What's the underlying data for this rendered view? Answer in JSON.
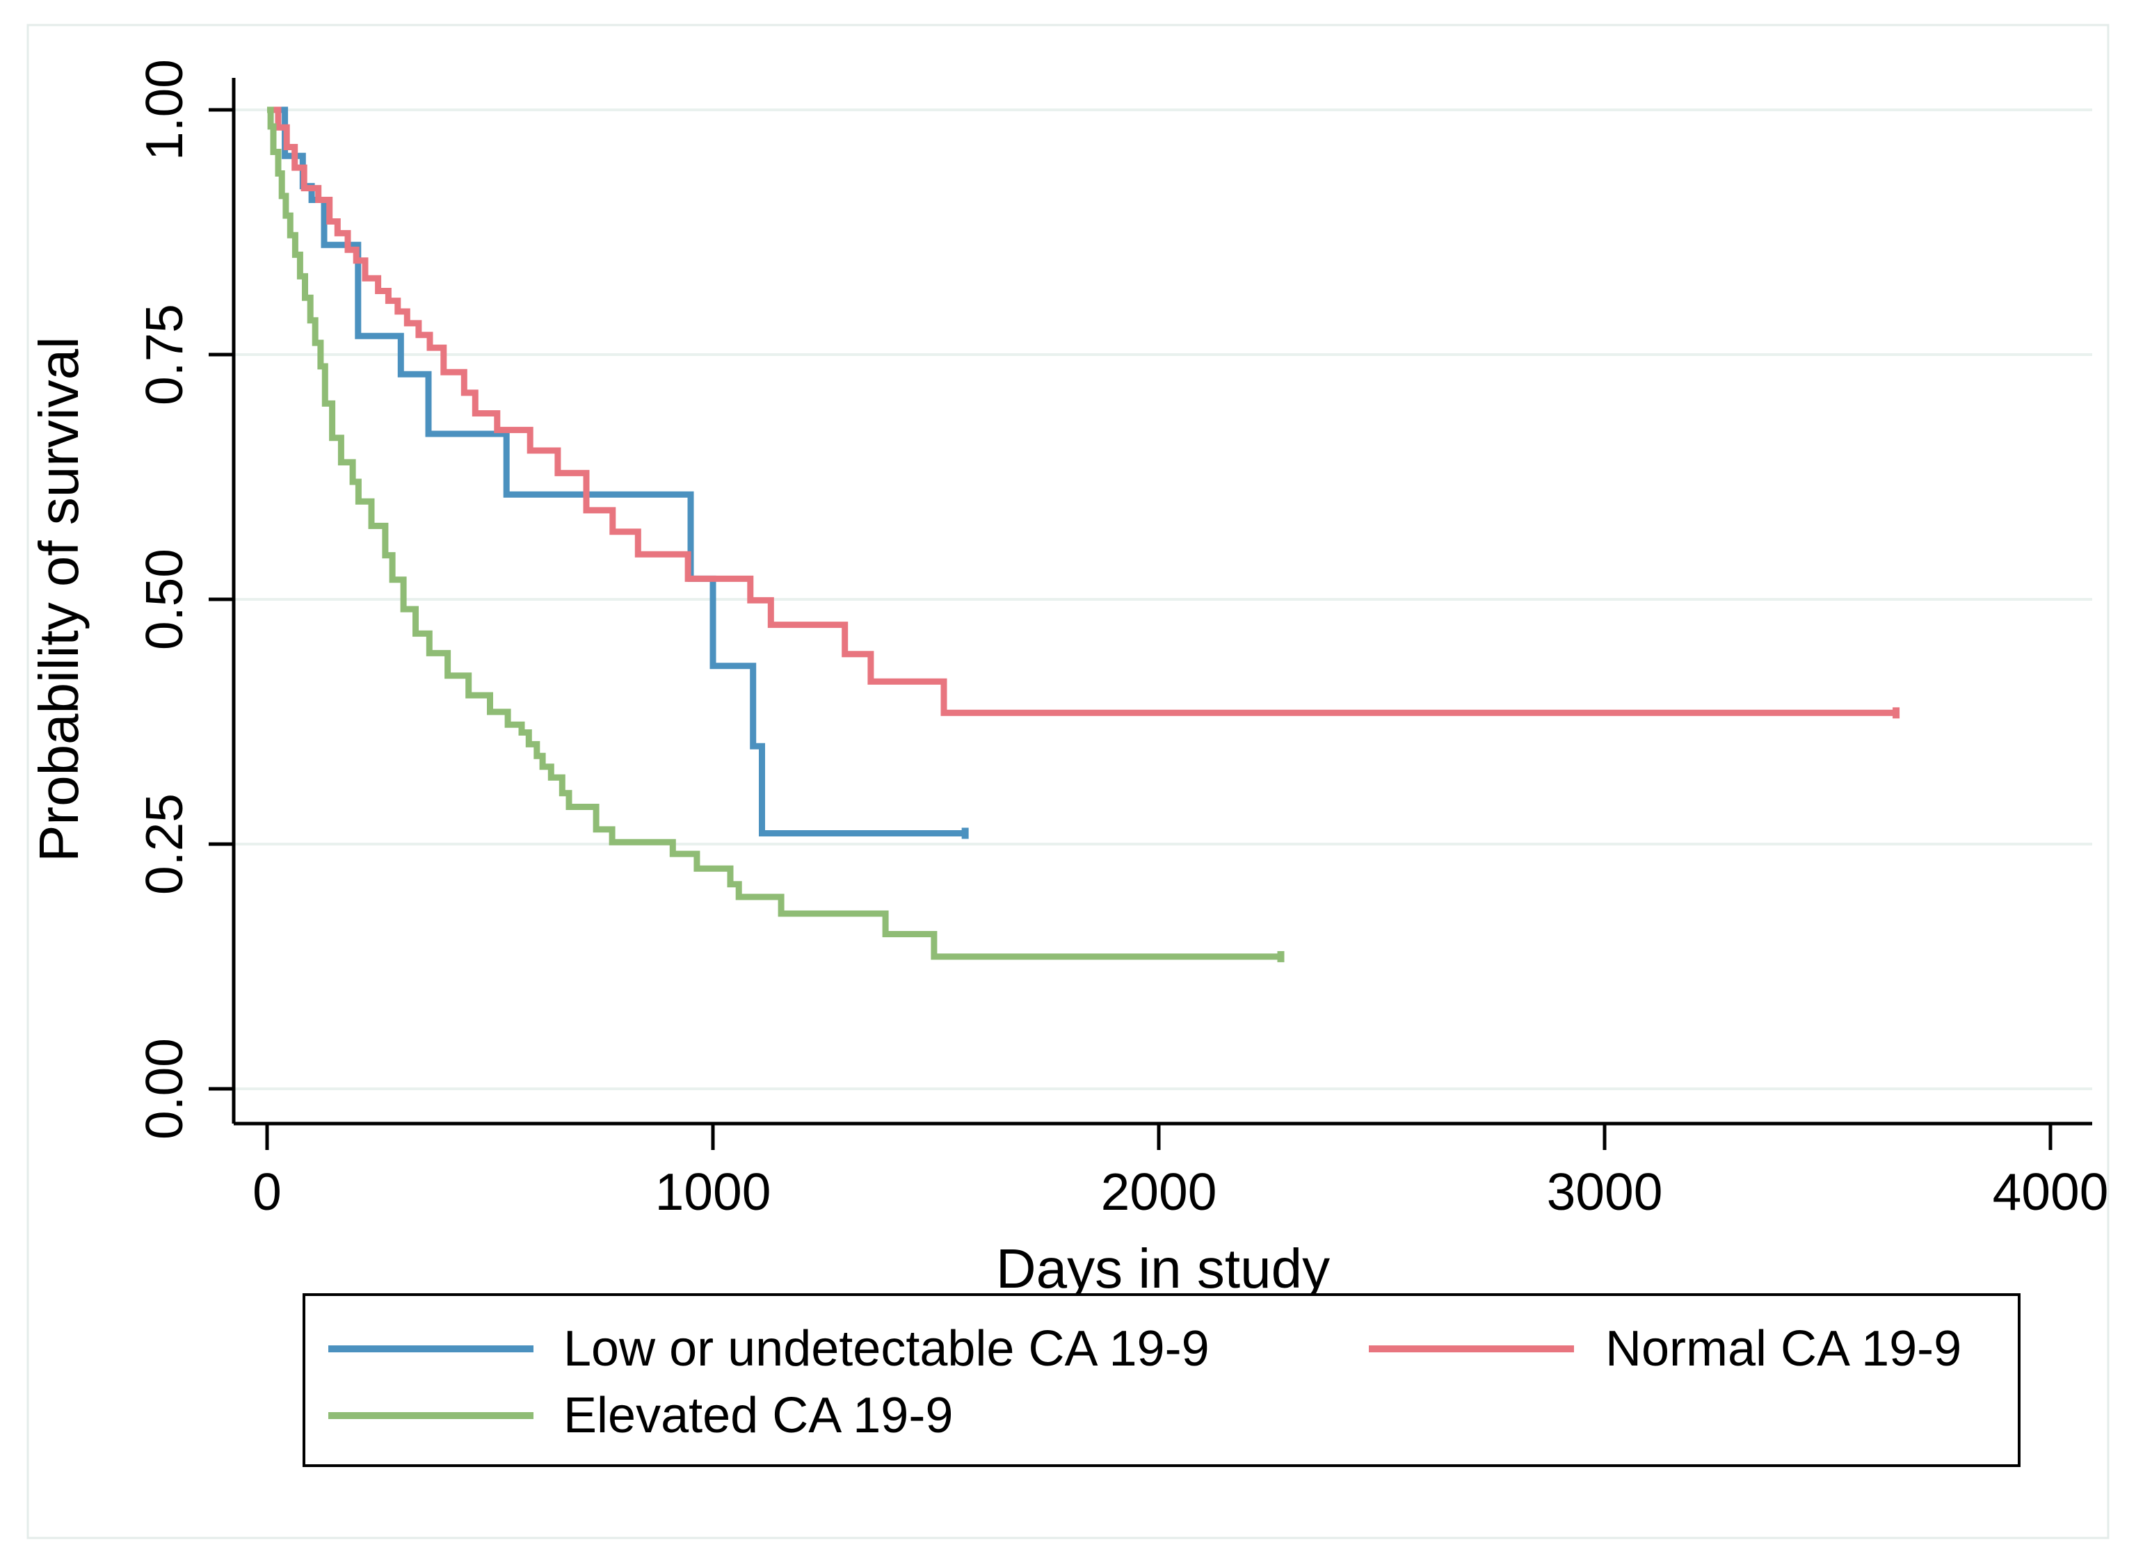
{
  "figure": {
    "background": "#ffffff",
    "frame_color": "#e4ecea",
    "gridline_color": "#e9f1ee",
    "axis_color": "#000000",
    "text_color": "#000000"
  },
  "chart_data": {
    "type": "line",
    "subtype": "kaplan-meier-step",
    "title": "",
    "xlabel": "Days in study",
    "ylabel": "Probability of survival",
    "xlim": [
      0,
      4200
    ],
    "ylim": [
      0.0,
      1.0
    ],
    "grid": "horizontal-only",
    "x_ticks": [
      {
        "value": 0,
        "label": "0"
      },
      {
        "value": 1000,
        "label": "1000"
      },
      {
        "value": 2000,
        "label": "2000"
      },
      {
        "value": 3000,
        "label": "3000"
      },
      {
        "value": 4000,
        "label": "4000"
      }
    ],
    "y_ticks": [
      {
        "value": 0.0,
        "label": "0.00"
      },
      {
        "value": 0.25,
        "label": "0.25"
      },
      {
        "value": 0.5,
        "label": "0.50"
      },
      {
        "value": 0.75,
        "label": "0.75"
      },
      {
        "value": 1.0,
        "label": "1.00"
      }
    ],
    "legend_position": "bottom-box",
    "series": [
      {
        "name": "Low or undetectable CA 19-9",
        "color": "#4b91bf",
        "end_day": 1572,
        "points": [
          [
            0,
            1.0
          ],
          [
            40,
            0.953
          ],
          [
            80,
            0.922
          ],
          [
            100,
            0.908
          ],
          [
            128,
            0.862
          ],
          [
            204,
            0.769
          ],
          [
            300,
            0.73
          ],
          [
            362,
            0.669
          ],
          [
            537,
            0.607
          ],
          [
            950,
            0.521
          ],
          [
            1000,
            0.432
          ],
          [
            1090,
            0.35
          ],
          [
            1110,
            0.261
          ]
        ]
      },
      {
        "name": "Normal CA 19-9",
        "color": "#e8757f",
        "end_day": 3660,
        "points": [
          [
            0,
            1.0
          ],
          [
            25,
            0.982
          ],
          [
            44,
            0.962
          ],
          [
            62,
            0.941
          ],
          [
            83,
            0.92
          ],
          [
            115,
            0.908
          ],
          [
            140,
            0.886
          ],
          [
            158,
            0.874
          ],
          [
            181,
            0.857
          ],
          [
            200,
            0.846
          ],
          [
            220,
            0.828
          ],
          [
            249,
            0.815
          ],
          [
            272,
            0.805
          ],
          [
            293,
            0.794
          ],
          [
            314,
            0.782
          ],
          [
            340,
            0.77
          ],
          [
            365,
            0.757
          ],
          [
            396,
            0.732
          ],
          [
            442,
            0.711
          ],
          [
            467,
            0.69
          ],
          [
            516,
            0.673
          ],
          [
            590,
            0.652
          ],
          [
            652,
            0.629
          ],
          [
            716,
            0.591
          ],
          [
            775,
            0.569
          ],
          [
            832,
            0.546
          ],
          [
            944,
            0.521
          ],
          [
            1084,
            0.499
          ],
          [
            1130,
            0.474
          ],
          [
            1296,
            0.444
          ],
          [
            1354,
            0.416
          ],
          [
            1518,
            0.384
          ]
        ]
      },
      {
        "name": "Elevated CA 19-9",
        "color": "#8fbc75",
        "end_day": 2280,
        "points": [
          [
            0,
            1.0
          ],
          [
            8,
            0.983
          ],
          [
            14,
            0.957
          ],
          [
            25,
            0.935
          ],
          [
            33,
            0.912
          ],
          [
            42,
            0.892
          ],
          [
            52,
            0.872
          ],
          [
            63,
            0.852
          ],
          [
            74,
            0.83
          ],
          [
            85,
            0.808
          ],
          [
            97,
            0.785
          ],
          [
            108,
            0.762
          ],
          [
            120,
            0.738
          ],
          [
            130,
            0.7
          ],
          [
            146,
            0.665
          ],
          [
            166,
            0.64
          ],
          [
            192,
            0.62
          ],
          [
            205,
            0.6
          ],
          [
            234,
            0.575
          ],
          [
            265,
            0.545
          ],
          [
            281,
            0.52
          ],
          [
            306,
            0.49
          ],
          [
            333,
            0.465
          ],
          [
            364,
            0.445
          ],
          [
            405,
            0.422
          ],
          [
            452,
            0.402
          ],
          [
            500,
            0.385
          ],
          [
            540,
            0.372
          ],
          [
            571,
            0.364
          ],
          [
            587,
            0.352
          ],
          [
            605,
            0.34
          ],
          [
            618,
            0.329
          ],
          [
            637,
            0.318
          ],
          [
            662,
            0.302
          ],
          [
            677,
            0.288
          ],
          [
            738,
            0.265
          ],
          [
            774,
            0.252
          ],
          [
            910,
            0.24
          ],
          [
            964,
            0.225
          ],
          [
            1039,
            0.209
          ],
          [
            1058,
            0.196
          ],
          [
            1153,
            0.179
          ],
          [
            1387,
            0.158
          ],
          [
            1496,
            0.135
          ]
        ]
      }
    ],
    "legend": [
      {
        "label": "Low or undetectable CA 19-9",
        "color": "#4b91bf",
        "row": 0,
        "col": 0
      },
      {
        "label": "Normal CA 19-9",
        "color": "#e8757f",
        "row": 0,
        "col": 1
      },
      {
        "label": "Elevated CA 19-9",
        "color": "#8fbc75",
        "row": 1,
        "col": 0
      }
    ]
  }
}
